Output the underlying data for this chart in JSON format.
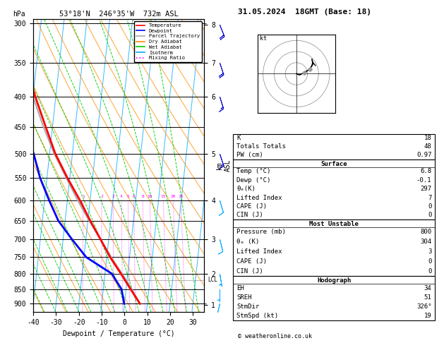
{
  "title_left": "53°18'N  246°35'W  732m ASL",
  "title_right": "31.05.2024  18GMT (Base: 18)",
  "xlabel": "Dewpoint / Temperature (°C)",
  "ylabel_left": "hPa",
  "pressure_ticks": [
    300,
    350,
    400,
    450,
    500,
    550,
    600,
    650,
    700,
    750,
    800,
    850,
    900
  ],
  "temp_ticks": [
    -40,
    -30,
    -20,
    -10,
    0,
    10,
    20,
    30
  ],
  "km_ticks": [
    1,
    2,
    3,
    4,
    5,
    6,
    7,
    8
  ],
  "km_pressures": [
    905,
    800,
    700,
    600,
    500,
    400,
    350,
    302
  ],
  "isotherm_color": "#00aaff",
  "dry_adiabat_color": "#ff8c00",
  "wet_adiabat_color": "#00cc00",
  "mixing_ratio_color": "#ff00ff",
  "parcel_color": "#aaaaaa",
  "temp_color": "#ff0000",
  "dewp_color": "#0000ff",
  "background_color": "#ffffff",
  "legend_items": [
    {
      "label": "Temperature",
      "color": "#ff0000",
      "ls": "-"
    },
    {
      "label": "Dewpoint",
      "color": "#0000ff",
      "ls": "-"
    },
    {
      "label": "Parcel Trajectory",
      "color": "#aaaaaa",
      "ls": "-"
    },
    {
      "label": "Dry Adiabat",
      "color": "#ff8c00",
      "ls": "-"
    },
    {
      "label": "Wet Adiabat",
      "color": "#00cc00",
      "ls": "-"
    },
    {
      "label": "Isotherm",
      "color": "#00aaff",
      "ls": "-"
    },
    {
      "label": "Mixing Ratio",
      "color": "#ff00ff",
      "ls": ":"
    }
  ],
  "stats": {
    "K": 18,
    "Totals_Totals": 48,
    "PW_cm": 0.97,
    "Surface": {
      "Temp_C": 6.8,
      "Dewp_C": -0.1,
      "theta_e_K": 297,
      "Lifted_Index": 7,
      "CAPE_J": 0,
      "CIN_J": 0
    },
    "Most_Unstable": {
      "Pressure_mb": 800,
      "theta_e_K": 304,
      "Lifted_Index": 3,
      "CAPE_J": 0,
      "CIN_J": 0
    },
    "Hodograph": {
      "EH": 34,
      "SREH": 51,
      "StmDir": "326°",
      "StmSpd_kt": 19
    }
  },
  "temperature_profile": {
    "pressure": [
      900,
      850,
      800,
      750,
      700,
      650,
      600,
      550,
      500,
      450,
      400,
      350,
      300
    ],
    "temperature": [
      6.8,
      2.0,
      -3.0,
      -8.5,
      -13.5,
      -19.0,
      -24.5,
      -31.0,
      -37.5,
      -43.0,
      -49.0,
      -55.0,
      -56.0
    ]
  },
  "dewpoint_profile": {
    "pressure": [
      900,
      850,
      800,
      750,
      700,
      650,
      600,
      550,
      500,
      450,
      400,
      350,
      300
    ],
    "dewpoint": [
      -0.1,
      -2.0,
      -7.0,
      -19.0,
      -26.0,
      -33.0,
      -38.0,
      -43.0,
      -47.0,
      -52.0,
      -56.0,
      -61.0,
      -65.0
    ]
  },
  "parcel_profile": {
    "pressure": [
      900,
      850,
      800,
      750,
      700,
      650,
      600,
      550,
      500,
      450,
      400,
      350,
      300
    ],
    "temperature": [
      6.8,
      2.5,
      -2.5,
      -8.0,
      -13.5,
      -19.5,
      -25.5,
      -31.5,
      -38.0,
      -44.0,
      -50.0,
      -56.5,
      -62.0
    ]
  },
  "lcl_pressure": 820,
  "skew_factor": 28
}
